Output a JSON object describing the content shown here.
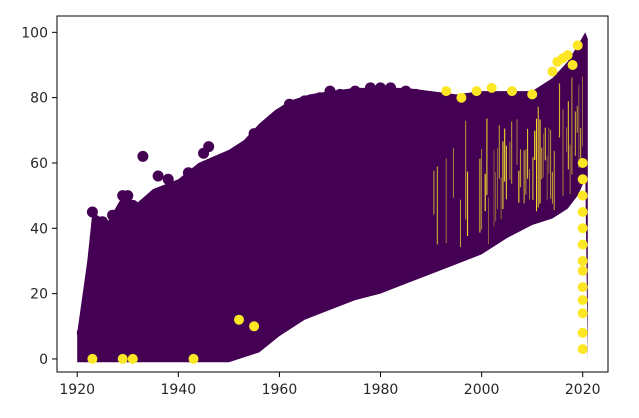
{
  "chart_data": {
    "type": "scatter",
    "title": "",
    "xlabel": "",
    "ylabel": "",
    "xlim": [
      1916,
      2025
    ],
    "ylim": [
      -4,
      105
    ],
    "xticks": [
      1920,
      1940,
      1960,
      1980,
      2000,
      2020
    ],
    "yticks": [
      0,
      20,
      40,
      60,
      80,
      100
    ],
    "grid": false,
    "legend": "none",
    "colors": {
      "low": "#440154",
      "high": "#fde725"
    },
    "series": [
      {
        "points_dark": [
          [
            1933,
            62
          ],
          [
            1929,
            50
          ],
          [
            1930,
            50
          ],
          [
            1931,
            47
          ],
          [
            1936,
            56
          ],
          [
            1938,
            55
          ],
          [
            1945,
            63
          ],
          [
            1946,
            65
          ],
          [
            1942,
            57
          ],
          [
            1950,
            59
          ],
          [
            1953,
            60
          ],
          [
            1955,
            69
          ],
          [
            1958,
            72
          ],
          [
            1960,
            75
          ],
          [
            1962,
            78
          ],
          [
            1965,
            79
          ],
          [
            1968,
            80
          ],
          [
            1970,
            82
          ],
          [
            1972,
            81
          ],
          [
            1975,
            82
          ],
          [
            1978,
            83
          ],
          [
            1980,
            83
          ],
          [
            1982,
            83
          ],
          [
            1985,
            82
          ],
          [
            1987,
            81
          ],
          [
            1923,
            45
          ],
          [
            1924,
            40
          ],
          [
            1925,
            42
          ],
          [
            1927,
            44
          ],
          [
            1921,
            8
          ],
          [
            1922,
            5
          ],
          [
            1925,
            10
          ],
          [
            1935,
            8
          ],
          [
            1948,
            46
          ],
          [
            1952,
            55
          ]
        ],
        "points_bright": [
          [
            1993,
            82
          ],
          [
            1996,
            80
          ],
          [
            1999,
            82
          ],
          [
            2002,
            83
          ],
          [
            2006,
            82
          ],
          [
            2010,
            81
          ],
          [
            2014,
            88
          ],
          [
            2015,
            91
          ],
          [
            2016,
            92
          ],
          [
            2017,
            93
          ],
          [
            2018,
            90
          ],
          [
            2019,
            96
          ],
          [
            2020,
            60
          ],
          [
            2020,
            55
          ],
          [
            2020,
            50
          ],
          [
            2020,
            45
          ],
          [
            2020,
            40
          ],
          [
            2020,
            35
          ],
          [
            2020,
            30
          ],
          [
            2020,
            27
          ],
          [
            2020,
            22
          ],
          [
            2020,
            18
          ],
          [
            2020,
            14
          ],
          [
            2020,
            8
          ],
          [
            2020,
            3
          ],
          [
            1923,
            0
          ],
          [
            1929,
            0
          ],
          [
            1931,
            0
          ],
          [
            1943,
            0
          ],
          [
            1952,
            12
          ],
          [
            1955,
            10
          ]
        ]
      }
    ]
  }
}
